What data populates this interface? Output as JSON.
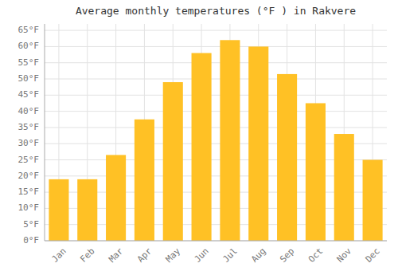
{
  "chart_data": {
    "type": "bar",
    "title": "Average monthly temperatures (°F ) in Rakvere",
    "categories": [
      "Jan",
      "Feb",
      "Mar",
      "Apr",
      "May",
      "Jun",
      "Jul",
      "Aug",
      "Sep",
      "Oct",
      "Nov",
      "Dec"
    ],
    "values": [
      19,
      19,
      26.5,
      37.5,
      49,
      58,
      62,
      60,
      51.5,
      42.5,
      33,
      25
    ],
    "color": "#FFC125",
    "ylim": [
      0,
      67
    ],
    "yticks": [
      {
        "value": 0,
        "label": "0°F"
      },
      {
        "value": 5,
        "label": "5°F"
      },
      {
        "value": 10,
        "label": "10°F"
      },
      {
        "value": 15,
        "label": "15°F"
      },
      {
        "value": 20,
        "label": "20°F"
      },
      {
        "value": 25,
        "label": "25°F"
      },
      {
        "value": 30,
        "label": "30°F"
      },
      {
        "value": 35,
        "label": "35°F"
      },
      {
        "value": 40,
        "label": "40°F"
      },
      {
        "value": 45,
        "label": "45°F"
      },
      {
        "value": 50,
        "label": "50°F"
      },
      {
        "value": 55,
        "label": "55°F"
      },
      {
        "value": 60,
        "label": "60°F"
      },
      {
        "value": 65,
        "label": "65°F"
      }
    ],
    "grid": true
  }
}
